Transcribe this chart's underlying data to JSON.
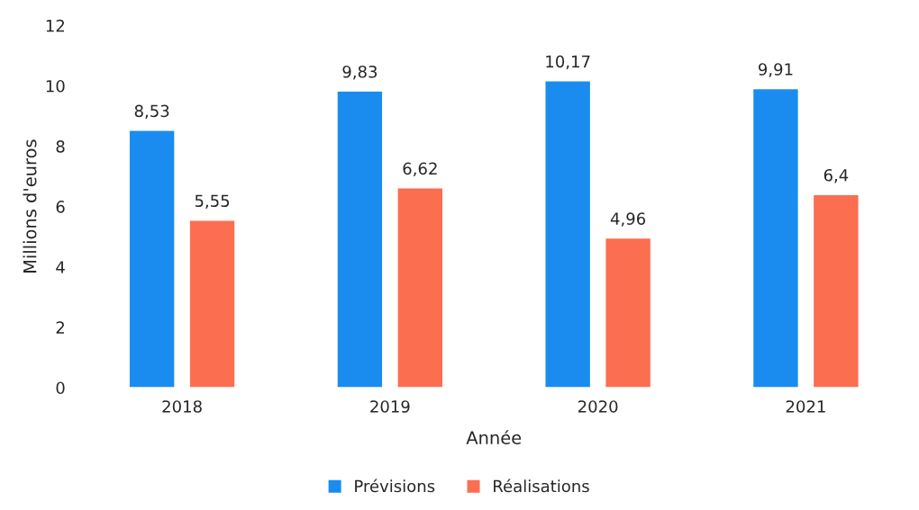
{
  "chart_data": {
    "type": "bar",
    "xlabel": "Année",
    "ylabel": "Millions d'euros",
    "categories": [
      "2018",
      "2019",
      "2020",
      "2021"
    ],
    "series": [
      {
        "name": "Prévisions",
        "color": "#1a8cf0",
        "values": [
          8.53,
          9.83,
          10.17,
          9.91
        ],
        "value_labels": [
          "8,53",
          "9,83",
          "10,17",
          "9,91"
        ]
      },
      {
        "name": "Réalisations",
        "color": "#fb6e50",
        "values": [
          5.55,
          6.62,
          4.96,
          6.4
        ],
        "value_labels": [
          "5,55",
          "6,62",
          "4,96",
          "6,4"
        ]
      }
    ],
    "ylim": [
      0,
      12
    ],
    "yticks": [
      0,
      2,
      4,
      6,
      8,
      10,
      12
    ],
    "grid": false,
    "legend": "bottom"
  }
}
